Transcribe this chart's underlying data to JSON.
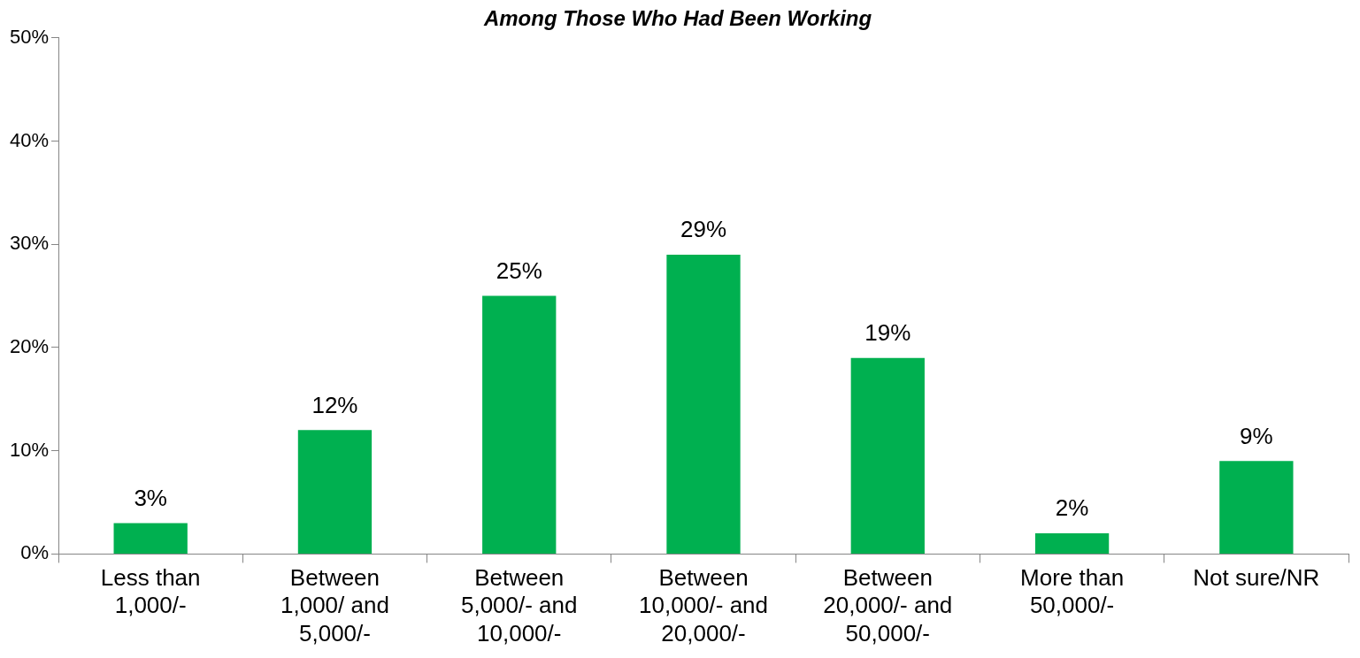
{
  "chart_data": {
    "type": "bar",
    "title": "Among Those Who Had Been Working",
    "categories": [
      "Less than 1,000/-",
      "Between 1,000/ and 5,000/-",
      "Between 5,000/- and 10,000/-",
      "Between 10,000/- and 20,000/-",
      "Between 20,000/- and 50,000/-",
      "More than 50,000/-",
      "Not sure/NR"
    ],
    "values": [
      3,
      12,
      25,
      29,
      19,
      2,
      9
    ],
    "value_labels": [
      "3%",
      "12%",
      "25%",
      "29%",
      "19%",
      "2%",
      "9%"
    ],
    "color": "#00b050",
    "ylim": [
      0,
      50
    ],
    "yticks": [
      {
        "value": 0,
        "label": "0%"
      },
      {
        "value": 10,
        "label": "10%"
      },
      {
        "value": 20,
        "label": "20%"
      },
      {
        "value": 30,
        "label": "30%"
      },
      {
        "value": 40,
        "label": "40%"
      },
      {
        "value": 50,
        "label": "50%"
      }
    ],
    "grid": false,
    "legend": false
  }
}
